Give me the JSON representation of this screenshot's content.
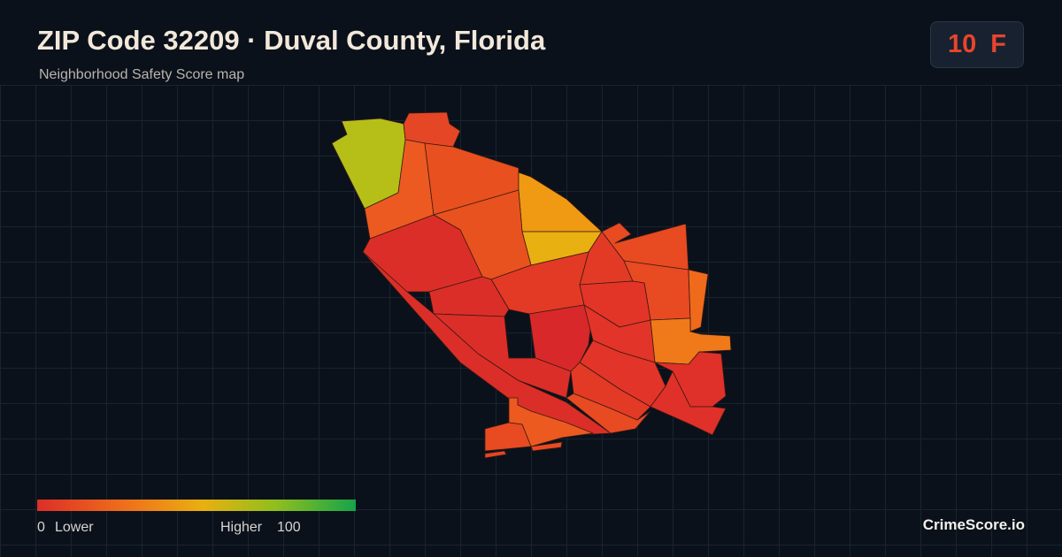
{
  "header": {
    "title": "ZIP Code 32209 · Duval County, Florida",
    "subtitle": "Neighborhood Safety Score map"
  },
  "score": {
    "value": 10,
    "grade": "F"
  },
  "legend": {
    "min": 0,
    "min_label": "Lower",
    "max_label": "Higher",
    "max": 100
  },
  "brand": "CrimeScore.io"
}
